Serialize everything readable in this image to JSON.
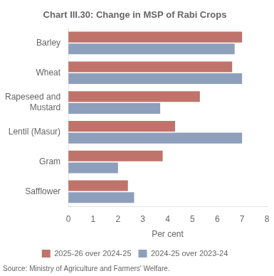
{
  "chart_data": {
    "type": "bar",
    "orientation": "horizontal",
    "title": "Chart III.30: Change in MSP of Rabi Crops",
    "xlabel": "Per cent",
    "annotations": [
      "Source: Ministry of Agriculture and Farmers' Welfare."
    ],
    "categories": [
      "Barley",
      "Wheat",
      "Rapeseed and\nMustard",
      "Lentil (Masur)",
      "Gram",
      "Safflower"
    ],
    "series": [
      {
        "name": "2025-26 over 2024-25",
        "color": "#c0736a",
        "values": [
          7.0,
          6.6,
          5.3,
          4.3,
          3.8,
          2.4
        ]
      },
      {
        "name": "2024-25 over 2023-24",
        "color": "#8e9fbc",
        "values": [
          6.7,
          7.0,
          3.7,
          7.0,
          2.0,
          2.65
        ]
      }
    ],
    "xlim": [
      0,
      8
    ],
    "xticks": [
      0,
      1,
      2,
      3,
      4,
      5,
      6,
      7,
      8
    ],
    "grid": false,
    "legend": "bottom"
  }
}
